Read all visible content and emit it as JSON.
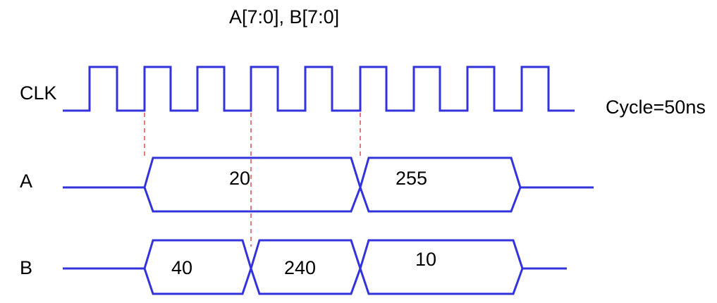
{
  "title": "A[7:0], B[7:0]",
  "note": "Cycle=50ns",
  "colors": {
    "wave": "#3333dd",
    "guide": "#dd3333",
    "text": "#000000"
  },
  "clock": {
    "label": "CLK",
    "cycles": 9
  },
  "signals": [
    {
      "label": "A",
      "values": [
        "20",
        "255"
      ]
    },
    {
      "label": "B",
      "values": [
        "40",
        "240",
        "10"
      ]
    }
  ]
}
